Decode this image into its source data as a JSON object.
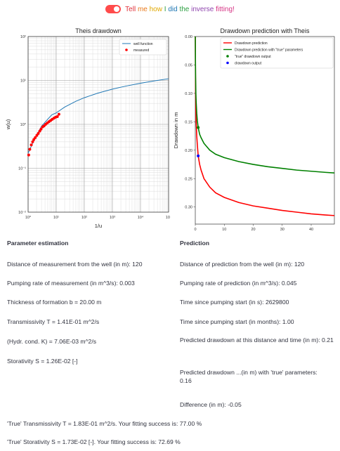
{
  "toggle": {
    "state": "on",
    "label_parts": [
      {
        "text": "Tell ",
        "color": "#e0303a"
      },
      {
        "text": "me ",
        "color": "#e97a1e"
      },
      {
        "text": "how ",
        "color": "#e0a800"
      },
      {
        "text": "I ",
        "color": "#2ea043"
      },
      {
        "text": "did ",
        "color": "#1f77b4"
      },
      {
        "text": "the ",
        "color": "#2ea043"
      },
      {
        "text": "inverse ",
        "color": "#8e44ad"
      },
      {
        "text": "fitting!",
        "color": "#d63384"
      }
    ]
  },
  "chart_data": [
    {
      "type": "scatter",
      "title": "Theis drawdown",
      "xlabel": "1/u",
      "ylabel": "w(u)",
      "xscale": "log",
      "yscale": "log",
      "xlim": [
        1,
        100000
      ],
      "ylim": [
        0.01,
        100
      ],
      "x_ticks": [
        "10⁰",
        "10¹",
        "10²",
        "10³",
        "10⁴",
        "10⁵"
      ],
      "y_ticks": [
        "10⁻²",
        "10⁻¹",
        "10⁰",
        "10¹",
        "10²"
      ],
      "grid": true,
      "legend": "top-right",
      "series": [
        {
          "name": "well function",
          "kind": "line",
          "color": "#1f77b4",
          "x": [
            1,
            1.5,
            2,
            3,
            5,
            7,
            10,
            20,
            50,
            100,
            300,
            1000,
            3000,
            10000,
            30000,
            100000
          ],
          "y": [
            0.219,
            0.389,
            0.56,
            0.906,
            1.31,
            1.65,
            1.82,
            2.47,
            3.35,
            4.04,
            5.13,
            6.33,
            7.43,
            8.63,
            9.73,
            10.94
          ]
        },
        {
          "name": "measured",
          "kind": "scatter",
          "color": "#ff0000",
          "x": [
            1.05,
            1.15,
            1.3,
            1.45,
            1.6,
            1.8,
            2.05,
            2.3,
            2.6,
            2.9,
            3.3,
            3.7,
            4.2,
            4.8,
            5.5,
            6.3,
            7.2,
            8.3,
            9.5,
            11,
            12.5
          ],
          "y": [
            0.2,
            0.27,
            0.34,
            0.4,
            0.45,
            0.5,
            0.56,
            0.62,
            0.7,
            0.78,
            0.88,
            0.92,
            1.0,
            1.07,
            1.15,
            1.22,
            1.3,
            1.38,
            1.45,
            1.5,
            1.7
          ]
        }
      ]
    },
    {
      "type": "line",
      "title": "Drawdown prediction with Theis",
      "xlabel": "Time in months",
      "ylabel": "Drawdown in m",
      "xlim": [
        0,
        48
      ],
      "ylim": [
        0.33,
        0
      ],
      "y_inverted": true,
      "x_ticks": [
        0,
        10,
        20,
        30,
        40
      ],
      "y_ticks": [
        "0.00",
        "0.05",
        "0.10",
        "0.15",
        "0.20",
        "0.25",
        "0.30"
      ],
      "legend": "top-right",
      "series": [
        {
          "name": "Drawdown prediction",
          "kind": "line",
          "color": "#ff0000",
          "x": [
            0.01,
            0.05,
            0.1,
            0.2,
            0.3,
            0.5,
            0.7,
            1,
            1.5,
            2,
            3,
            5,
            7,
            10,
            15,
            20,
            25,
            30,
            35,
            40,
            45,
            48
          ],
          "y": [
            0.0,
            0.05,
            0.09,
            0.13,
            0.15,
            0.175,
            0.19,
            0.21,
            0.225,
            0.235,
            0.25,
            0.265,
            0.275,
            0.283,
            0.292,
            0.298,
            0.302,
            0.306,
            0.309,
            0.312,
            0.314,
            0.315
          ]
        },
        {
          "name": "Drawdown prediction with \"true\" parameters",
          "kind": "line",
          "color": "#008000",
          "x": [
            0.01,
            0.05,
            0.1,
            0.2,
            0.3,
            0.5,
            0.7,
            1,
            1.5,
            2,
            3,
            5,
            7,
            10,
            15,
            20,
            25,
            30,
            35,
            40,
            45,
            48
          ],
          "y": [
            0.0,
            0.04,
            0.07,
            0.1,
            0.115,
            0.135,
            0.148,
            0.16,
            0.172,
            0.178,
            0.188,
            0.2,
            0.207,
            0.213,
            0.22,
            0.225,
            0.229,
            0.232,
            0.235,
            0.237,
            0.239,
            0.24
          ]
        },
        {
          "name": "\"true\" drawdown output",
          "kind": "point",
          "color": "#008000",
          "x": [
            1
          ],
          "y": [
            0.16
          ]
        },
        {
          "name": "drawdown output",
          "kind": "point",
          "color": "#0000ff",
          "x": [
            1
          ],
          "y": [
            0.21
          ]
        }
      ]
    }
  ],
  "parameter_estimation": {
    "heading": "Parameter estimation",
    "lines": [
      "Distance of measurement from the well (in m): 120",
      "Pumping rate of measurement (in m^3/s): 0.003",
      "Thickness of formation b = 20.00 m",
      "Transmissivity T = 1.41E-01 m^2/s",
      "(Hydr. cond. K) = 7.06E-03 m^2/s",
      "Storativity S = 1.26E-02 [-]"
    ]
  },
  "prediction": {
    "heading": "Prediction",
    "lines": [
      "Distance of prediction from the well (in m): 120",
      "Pumping rate of prediction (in m^3/s): 0.045",
      "Time since pumping start (in s): 2629800",
      "Time since pumping start (in months): 1.00",
      "Predicted drawdown at this distance and time (in m): 0.21",
      "Predicted drawdown ...(in m) with 'true' parameters: 0.16",
      "Difference (in m): -0.05"
    ]
  },
  "results": {
    "true_transmissivity": "'True' Transmissivity T = 1.83E-01 m^2/s. Your fitting success is: 77.00 %",
    "true_storativity": "'True' Storativity S = 1.73E-02 [-]. Your fitting success is: 72.69 %"
  }
}
